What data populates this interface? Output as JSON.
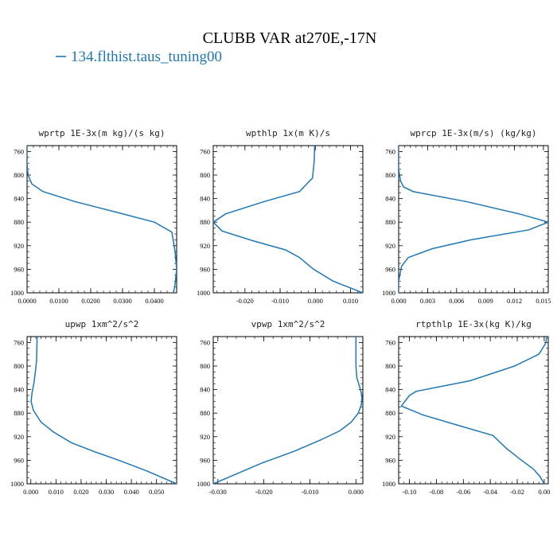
{
  "title": "CLUBB VAR at270E,-17N",
  "legend": {
    "label": "134.flthist.taus_tuning00",
    "color": "#1f77b4"
  },
  "chart_data": [
    {
      "type": "line",
      "title": "wprtp  1E-3x(m kg)/(s kg)",
      "xlim": [
        0,
        0.047
      ],
      "xticks": [
        0,
        0.01,
        0.02,
        0.03,
        0.04
      ],
      "xticklabels": [
        "0.0000",
        "0.0100",
        "0.0200",
        "0.0300",
        "0.0400"
      ],
      "ylim": [
        1000,
        750
      ],
      "yticks": [
        760,
        800,
        840,
        880,
        920,
        960,
        1000
      ],
      "yticklabels": [
        "760",
        "800",
        "840",
        "880",
        "920",
        "960",
        "1000"
      ],
      "series": [
        {
          "name": "134.flthist.taus_tuning00",
          "x": [
            0.0,
            0.0,
            0.0003,
            0.0015,
            0.005,
            0.015,
            0.028,
            0.04,
            0.0455,
            0.0465,
            0.047,
            0.0465,
            0.046
          ],
          "y": [
            750,
            780,
            800,
            815,
            828,
            845,
            863,
            880,
            897,
            930,
            960,
            985,
            1000
          ]
        }
      ]
    },
    {
      "type": "line",
      "title": "wpthlp  1x(m K)/s",
      "xlim": [
        -0.029,
        0.0135
      ],
      "xticks": [
        -0.02,
        -0.01,
        0,
        0.01
      ],
      "xticklabels": [
        "-0.020",
        "-0.010",
        "0.000",
        "0.010"
      ],
      "ylim": [
        1000,
        750
      ],
      "yticks": [
        760,
        800,
        840,
        880,
        920,
        960,
        1000
      ],
      "yticklabels": [
        "760",
        "800",
        "840",
        "880",
        "920",
        "960",
        "1000"
      ],
      "series": [
        {
          "name": "134.flthist.taus_tuning00",
          "x": [
            -0.0002,
            -0.0003,
            -0.0008,
            -0.0045,
            -0.0145,
            -0.0255,
            -0.029,
            -0.0265,
            -0.0175,
            -0.0085,
            -0.0045,
            -0.0005,
            0.005,
            0.0135
          ],
          "y": [
            750,
            775,
            805,
            828,
            845,
            866,
            880,
            895,
            912,
            927,
            940,
            960,
            980,
            1000
          ]
        }
      ]
    },
    {
      "type": "line",
      "title": "wprcp  1E-3x(m/s) (kg/kg)",
      "xlim": [
        0,
        0.0155
      ],
      "xticks": [
        0,
        0.003,
        0.006,
        0.009,
        0.012,
        0.015
      ],
      "xticklabels": [
        "0.000",
        "0.003",
        "0.006",
        "0.009",
        "0.012",
        "0.015"
      ],
      "ylim": [
        1000,
        750
      ],
      "yticks": [
        760,
        800,
        840,
        880,
        920,
        960,
        1000
      ],
      "yticklabels": [
        "760",
        "800",
        "840",
        "880",
        "920",
        "960",
        "1000"
      ],
      "series": [
        {
          "name": "134.flthist.taus_tuning00",
          "x": [
            0,
            0,
            0.0002,
            0.0005,
            0.0015,
            0.007,
            0.0125,
            0.0155,
            0.0135,
            0.0075,
            0.0035,
            0.001,
            0.0003,
            0,
            0
          ],
          "y": [
            750,
            790,
            810,
            820,
            828,
            845,
            866,
            880,
            893,
            910,
            925,
            940,
            955,
            980,
            1000
          ]
        }
      ]
    },
    {
      "type": "line",
      "title": "upwp  1xm^2/s^2",
      "xlim": [
        -0.0015,
        0.058
      ],
      "xticks": [
        0,
        0.01,
        0.02,
        0.03,
        0.04,
        0.05
      ],
      "xticklabels": [
        "0.000",
        "0.010",
        "0.020",
        "0.030",
        "0.040",
        "0.050"
      ],
      "ylim": [
        1000,
        750
      ],
      "yticks": [
        760,
        800,
        840,
        880,
        920,
        960,
        1000
      ],
      "yticklabels": [
        "760",
        "800",
        "840",
        "880",
        "920",
        "960",
        "1000"
      ],
      "series": [
        {
          "name": "134.flthist.taus_tuning00",
          "x": [
            0.0025,
            0.0023,
            0.0018,
            0.0012,
            0.0005,
            0.0001,
            0.001,
            0.004,
            0.009,
            0.016,
            0.025,
            0.035,
            0.046,
            0.058
          ],
          "y": [
            750,
            790,
            810,
            830,
            845,
            860,
            875,
            895,
            912,
            930,
            945,
            960,
            978,
            1000
          ]
        }
      ]
    },
    {
      "type": "line",
      "title": "vpwp  1xm^2/s^2",
      "xlim": [
        -0.031,
        0.0015
      ],
      "xticks": [
        -0.03,
        -0.02,
        -0.01,
        0
      ],
      "xticklabels": [
        "-0.030",
        "-0.020",
        "-0.010",
        "0.000"
      ],
      "ylim": [
        1000,
        750
      ],
      "yticks": [
        760,
        800,
        840,
        880,
        920,
        960,
        1000
      ],
      "yticklabels": [
        "760",
        "800",
        "840",
        "880",
        "920",
        "960",
        "1000"
      ],
      "series": [
        {
          "name": "134.flthist.taus_tuning00",
          "x": [
            0,
            0,
            0.0002,
            0.0008,
            0.0013,
            0.0012,
            0.0005,
            -0.001,
            -0.0035,
            -0.0075,
            -0.0135,
            -0.0205,
            -0.0265,
            -0.031
          ],
          "y": [
            750,
            800,
            820,
            835,
            850,
            865,
            880,
            895,
            910,
            925,
            945,
            965,
            985,
            1000
          ]
        }
      ]
    },
    {
      "type": "line",
      "title": "rtpthlp  1E-3x(kg K)/kg",
      "xlim": [
        -0.108,
        0.003
      ],
      "xticks": [
        -0.1,
        -0.08,
        -0.06,
        -0.04,
        -0.02,
        0
      ],
      "xticklabels": [
        "-0.10",
        "-0.08",
        "-0.06",
        "-0.04",
        "-0.02",
        "0.00"
      ],
      "ylim": [
        1000,
        750
      ],
      "yticks": [
        760,
        800,
        840,
        880,
        920,
        960,
        1000
      ],
      "yticklabels": [
        "760",
        "800",
        "840",
        "880",
        "920",
        "960",
        "1000"
      ],
      "series": [
        {
          "name": "134.flthist.taus_tuning00",
          "x": [
            0.002,
            0.001,
            -0.004,
            -0.022,
            -0.055,
            -0.095,
            -0.1,
            -0.106,
            -0.09,
            -0.065,
            -0.038,
            -0.028,
            -0.018,
            -0.008,
            -0.003,
            0.0
          ],
          "y": [
            750,
            762,
            780,
            800,
            825,
            843,
            850,
            868,
            883,
            900,
            918,
            940,
            958,
            975,
            988,
            1000
          ]
        }
      ]
    }
  ]
}
